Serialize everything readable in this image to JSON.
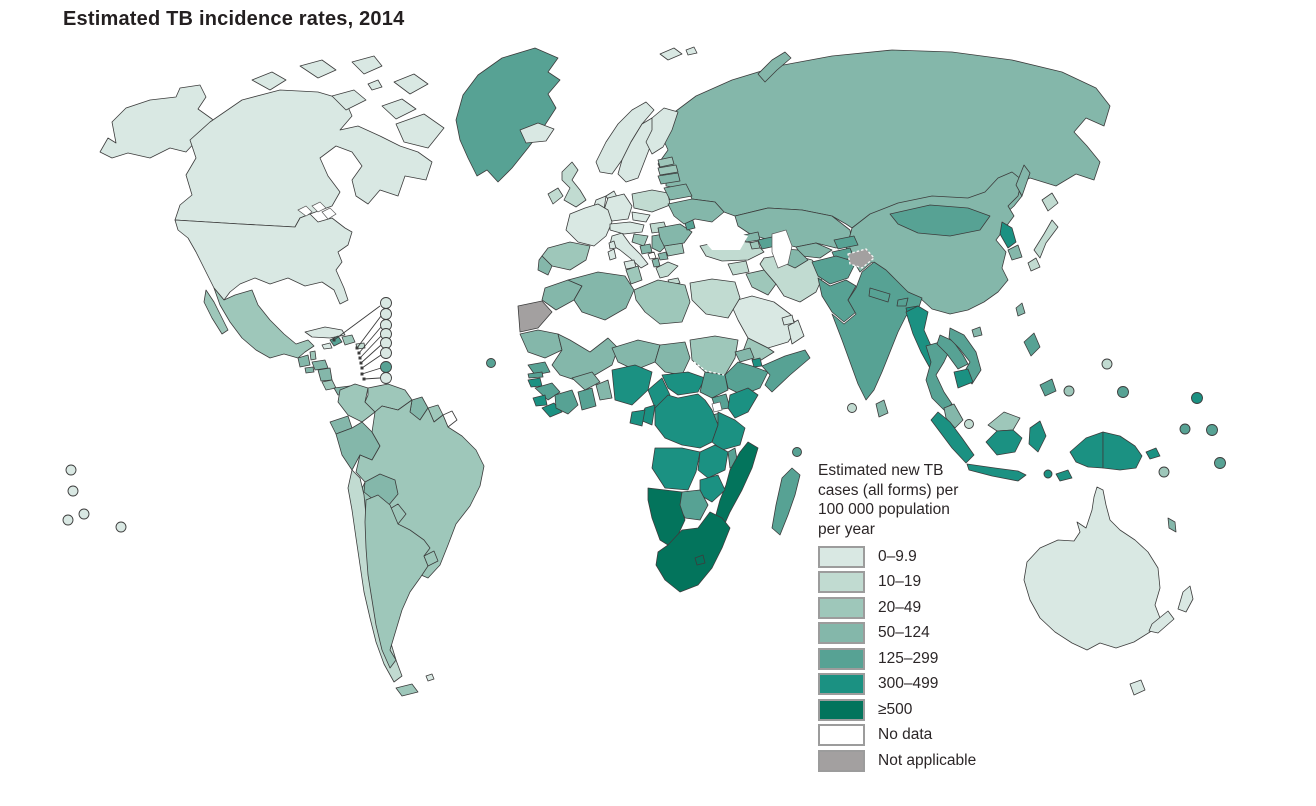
{
  "title": "Estimated TB incidence rates, 2014",
  "legend": {
    "title": "Estimated new TB cases (all forms) per 100 000 population per year",
    "items": [
      {
        "label": "0–9.9",
        "category": "c1"
      },
      {
        "label": "10–19",
        "category": "c2"
      },
      {
        "label": "20–49",
        "category": "c3"
      },
      {
        "label": "50–124",
        "category": "c4"
      },
      {
        "label": "125–299",
        "category": "c5"
      },
      {
        "label": "300–499",
        "category": "c6"
      },
      {
        "label": "≥500",
        "category": "c7"
      },
      {
        "label": "No data",
        "category": "nd"
      },
      {
        "label": "Not applicable",
        "category": "na"
      }
    ]
  },
  "palette": {
    "c1": "#d9e8e3",
    "c2": "#c1dbd1",
    "c3": "#9ec7ba",
    "c4": "#84b7aa",
    "c5": "#57a294",
    "c6": "#1b9182",
    "c7": "#03745c",
    "nd": "#ffffff",
    "na": "#a3a0a0"
  },
  "map": {
    "regions": {
      "alaska": "c1",
      "alaska-panhandle": "c1",
      "canada": "c1",
      "arctic-1": "c1",
      "arctic-2": "c1",
      "arctic-3": "c1",
      "arctic-4": "c1",
      "arctic-5": "c1",
      "arctic-6": "c1",
      "baffin": "c1",
      "arctic-7": "c1",
      "greenland": "c5",
      "iceland": "c1",
      "svalbard-1": "c1",
      "svalbard-2": "c1",
      "novaya-zemlya": "c4",
      "usa": "c1",
      "mexico": "c3",
      "baja": "c3",
      "guatemala": "c4",
      "belize": "c3",
      "honduras": "c4",
      "el-salvador": "c4",
      "nicaragua": "c4",
      "costa-rica": "c3",
      "panama": "c4",
      "cuba": "c1",
      "jamaica": "c1",
      "haiti": "c5",
      "dominican-republic": "c3",
      "puerto-rico": "c2",
      "trinidad": "c3",
      "colombia": "c3",
      "venezuela": "c3",
      "guyana": "c4",
      "suriname": "c3",
      "french-guiana": "nd",
      "ecuador": "c4",
      "peru": "c4",
      "brazil": "c3",
      "bolivia": "c4",
      "paraguay": "c3",
      "chile": "c2",
      "argentina": "c3",
      "uruguay": "c3",
      "tierra-del-fuego": "c3",
      "falklands": "c1",
      "ireland": "c2",
      "united-kingdom": "c2",
      "norway": "c1",
      "sweden": "c1",
      "finland": "c1",
      "denmark": "c1",
      "germany": "c1",
      "benelux": "c1",
      "france": "c1",
      "spain": "c3",
      "portugal": "c4",
      "italy": "c1",
      "sicily": "c1",
      "sardinia": "c1",
      "corsica": "c1",
      "switzerland-austria": "c1",
      "czechia": "c1",
      "poland": "c2",
      "hungary": "c2",
      "croatia": "c3",
      "bosnia": "c4",
      "serbia": "c4",
      "montenegro": "nd",
      "albania": "c4",
      "macedonia": "c4",
      "greece": "c2",
      "crete": "c2",
      "bulgaria": "c3",
      "romania": "c4",
      "moldova": "c5",
      "estonia": "c3",
      "latvia": "c3",
      "lithuania": "c4",
      "belarus": "c4",
      "ukraine": "c4",
      "russia": "c4",
      "turkey": "c2",
      "georgia": "c4",
      "azerbaijan": "c5",
      "armenia": "c3",
      "syria": "c2",
      "iraq": "c3",
      "iran": "c2",
      "jordan": "c1",
      "israel": "c1",
      "saudi-arabia": "c1",
      "yemen": "c3",
      "oman": "c1",
      "uae": "c1",
      "kazakhstan": "c4",
      "uzbekistan": "c4",
      "turkmenistan": "c4",
      "kyrgyzstan": "c5",
      "tajikistan": "c5",
      "afghanistan": "c5",
      "pakistan": "c5",
      "kashmir": "na",
      "india": "c5",
      "nepal": "c5",
      "bhutan": "c5",
      "bangladesh": "c6",
      "sri-lanka": "c4",
      "china": "c4",
      "mongolia": "c5",
      "north-korea": "c6",
      "south-korea": "c4",
      "japan-hokkaido": "c2",
      "japan-honshu": "c2",
      "japan-kyushu": "c2",
      "sakhalin": "c4",
      "taiwan": "c4",
      "hainan": "c4",
      "myanmar": "c6",
      "thailand": "c5",
      "laos": "c5",
      "vietnam": "c5",
      "cambodia": "c6",
      "malaysia-peninsula": "c4",
      "sumatra": "c6",
      "borneo-malaysia": "c3",
      "kalimantan": "c6",
      "sulawesi": "c6",
      "java": "c6",
      "timor": "c6",
      "luzon": "c5",
      "mindanao": "c5",
      "new-guinea-west": "c6",
      "papua-new-guinea": "c6",
      "new-britain": "c6",
      "new-caledonia": "c4",
      "morocco": "c4",
      "western-sahara": "na",
      "algeria": "c4",
      "tunisia": "c3",
      "libya": "c3",
      "egypt": "c2",
      "mauritania": "c4",
      "mali": "c4",
      "niger": "c4",
      "chad": "c4",
      "sudan": "c3",
      "eritrea": "c4",
      "djibouti": "c6",
      "ethiopia": "c5",
      "somalia": "c5",
      "senegal": "c5",
      "gambia": "c5",
      "guinea-bissau": "c6",
      "guinea": "c5",
      "sierra-leone": "c6",
      "liberia": "c6",
      "ivory-coast": "c5",
      "ghana": "c5",
      "burkina-faso": "c4",
      "togo-benin": "c4",
      "nigeria": "c6",
      "cameroon": "c6",
      "central-african-republic": "c6",
      "south-sudan": "c5",
      "uganda": "c5",
      "kenya": "c6",
      "rwanda-burundi": "c5",
      "dr-congo": "c6",
      "congo": "c6",
      "gabon": "c6",
      "tanzania": "c6",
      "angola": "c6",
      "zambia": "c6",
      "malawi": "c5",
      "mozambique": "c7",
      "zimbabwe": "c6",
      "botswana": "c5",
      "namibia": "c7",
      "south-africa": "c7",
      "lesotho": "c7",
      "madagascar": "c5",
      "australia": "c1",
      "tasmania": "c1",
      "new-zealand-north": "c1",
      "new-zealand-south": "c1"
    },
    "markers": {
      "caribbean-1": "c1",
      "caribbean-2": "c1",
      "caribbean-3": "c1",
      "caribbean-4": "c1",
      "caribbean-5": "c1",
      "caribbean-6": "c1",
      "caribbean-7": "c5",
      "caribbean-8": "c1",
      "pacific-west-1": "c1",
      "pacific-west-2": "c1",
      "pacific-west-3": "c1",
      "pacific-west-4": "c1",
      "pacific-west-5": "c1",
      "cape-verde": "c5",
      "seychelles": "c5",
      "maldives": "c2",
      "singapore": "c2",
      "palau": "c3",
      "micronesia": "c2",
      "marshall": "c5",
      "nauru-kiribati": "c3",
      "png-island": "c6",
      "solomon-dot": "c5",
      "tuvalu": "c5",
      "vanuatu-dot": "c5",
      "lesser-sunda-dot": "c6"
    }
  }
}
